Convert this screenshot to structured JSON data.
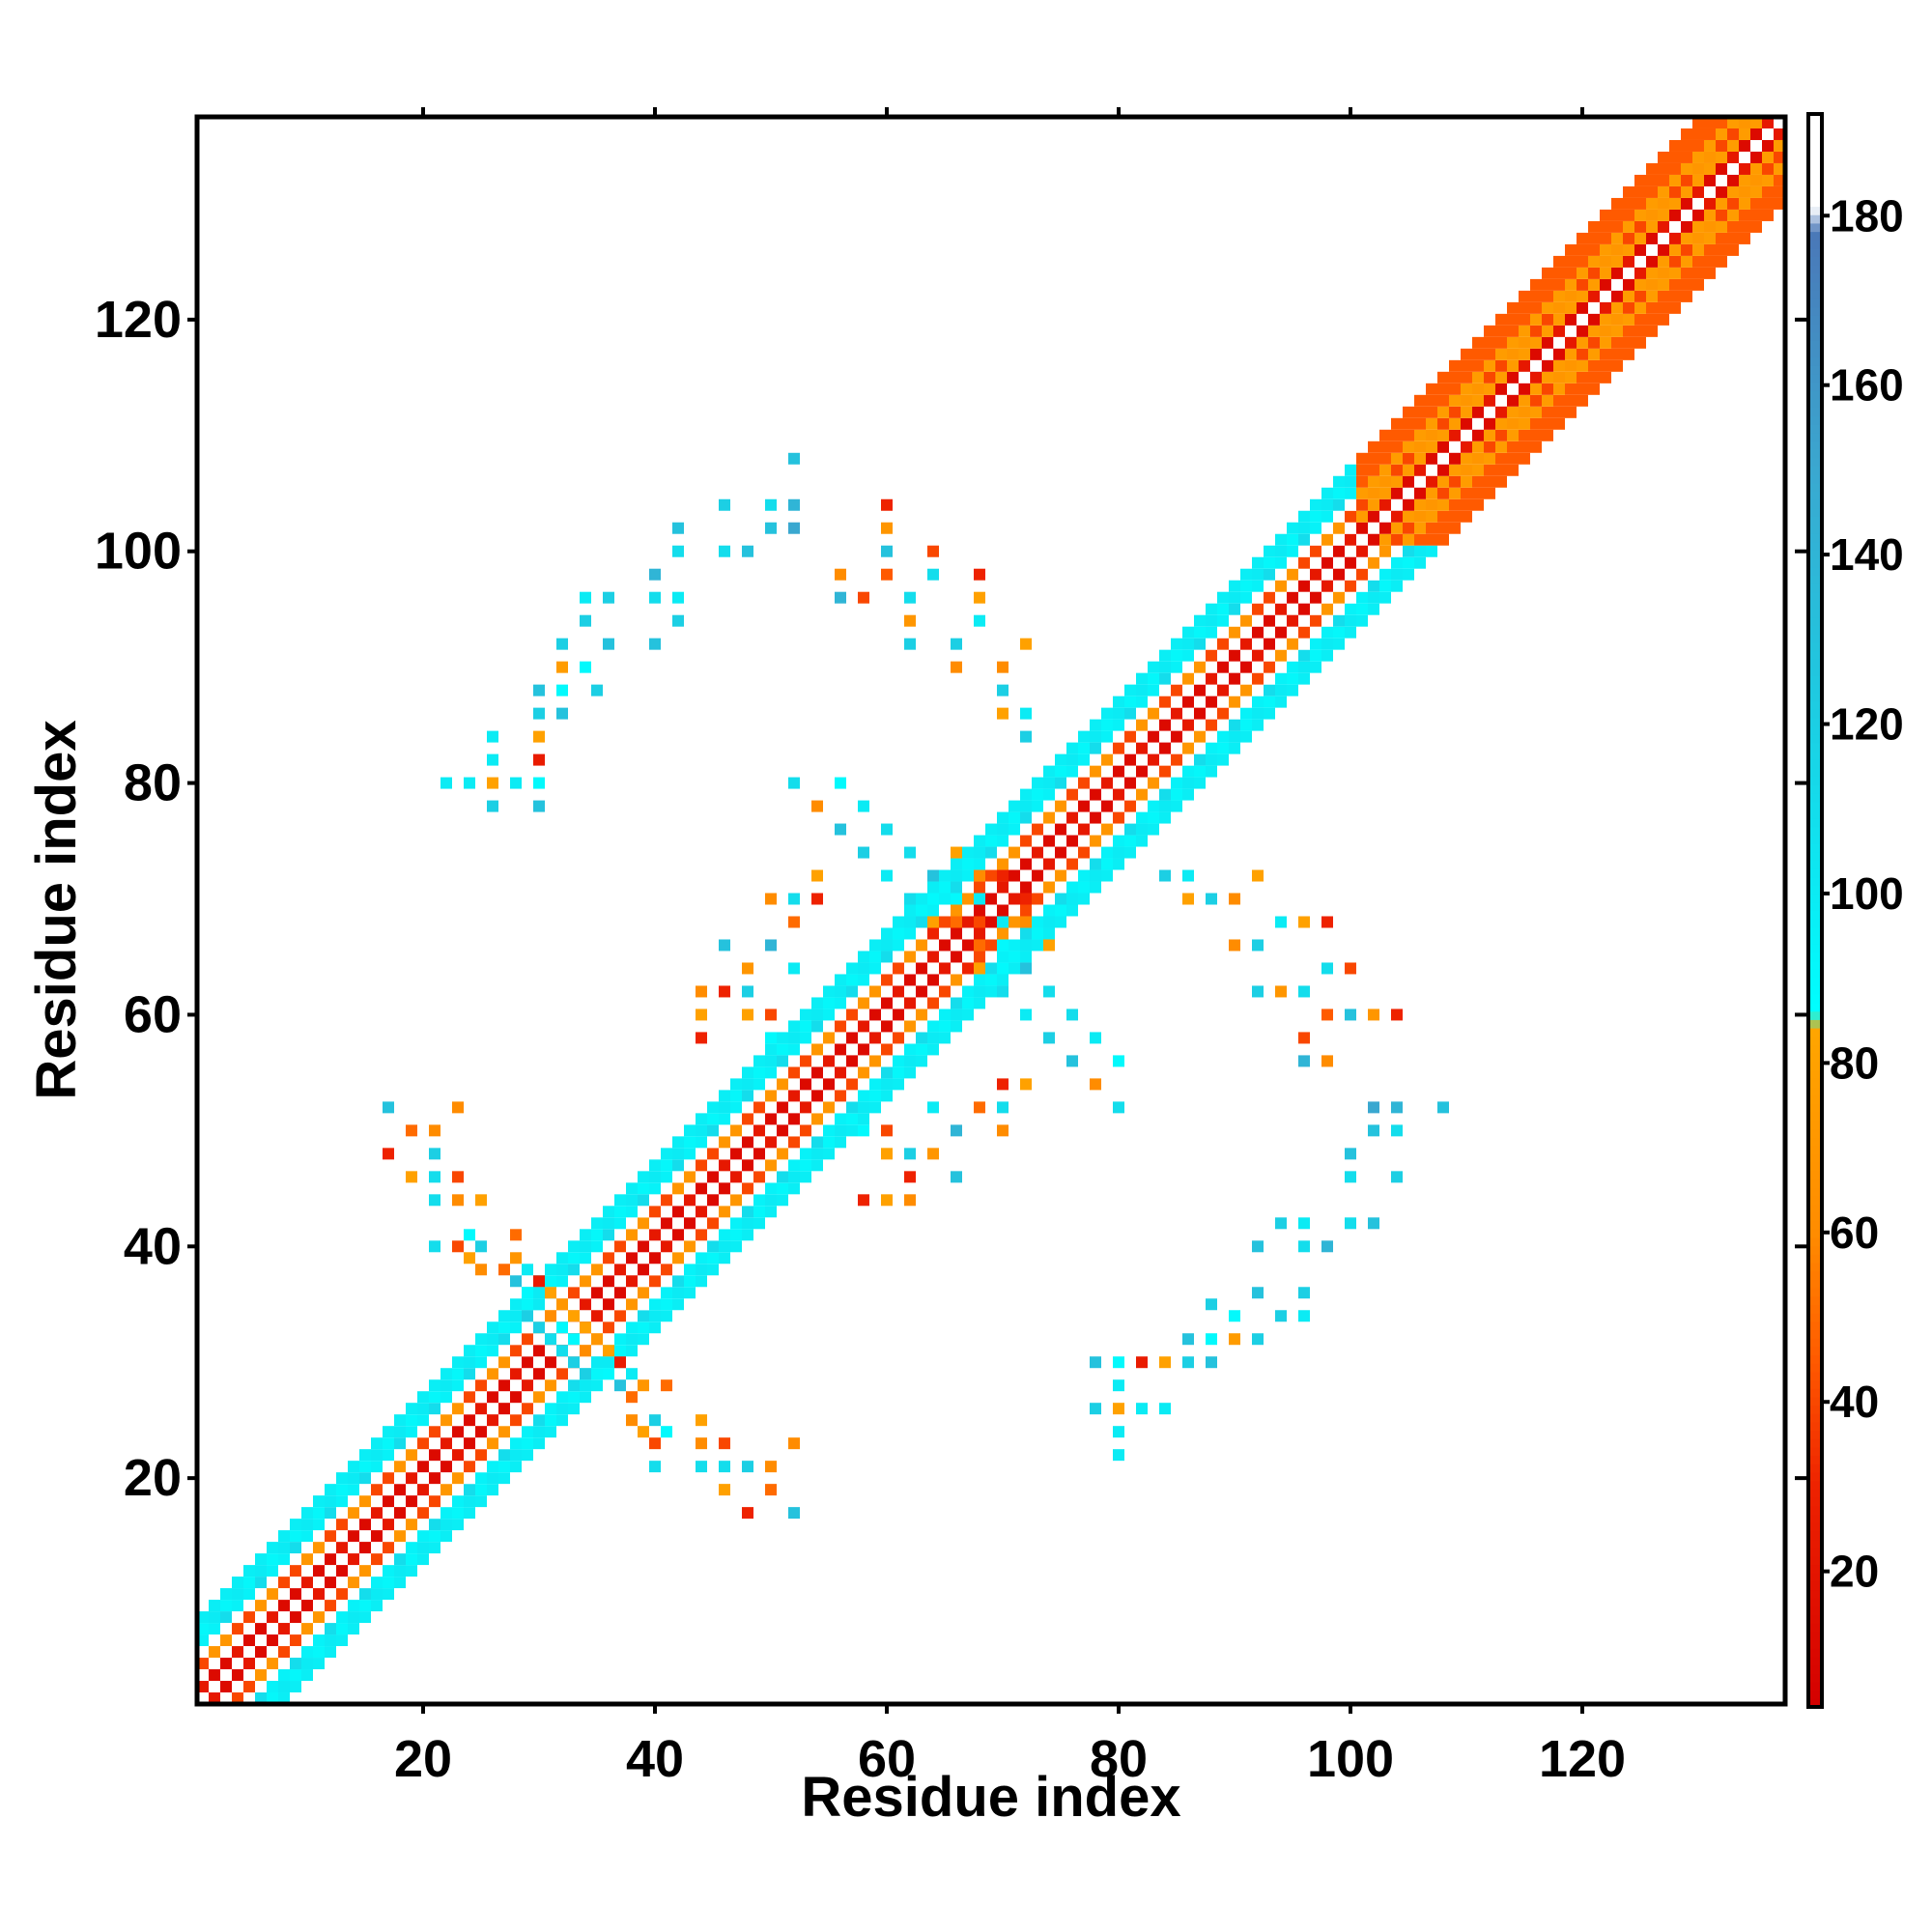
{
  "chart_data": {
    "type": "heatmap",
    "title": "",
    "xlabel": "Residue index",
    "ylabel": "Residue index",
    "xlim": [
      1,
      137
    ],
    "ylim": [
      1,
      137
    ],
    "xticks": [
      20,
      40,
      60,
      80,
      100,
      120
    ],
    "yticks": [
      20,
      40,
      60,
      80,
      100,
      120
    ],
    "grid": false,
    "colorbar": {
      "range": [
        4,
        192
      ],
      "ticks": [
        20,
        40,
        60,
        80,
        100,
        120,
        140,
        160,
        180
      ],
      "stops": [
        {
          "value": 4,
          "color": "#d40000"
        },
        {
          "value": 30,
          "color": "#ee2200"
        },
        {
          "value": 45,
          "color": "#ff5a00"
        },
        {
          "value": 60,
          "color": "#ff8c00"
        },
        {
          "value": 84,
          "color": "#ffa500"
        },
        {
          "value": 86,
          "color": "#00ffff"
        },
        {
          "value": 125,
          "color": "#20c8e0"
        },
        {
          "value": 150,
          "color": "#3aa8d0"
        },
        {
          "value": 178,
          "color": "#4a78b8"
        },
        {
          "value": 181,
          "color": "#ffffff"
        },
        {
          "value": 192,
          "color": "#ffffff"
        }
      ]
    },
    "band": {
      "halfwidth": 7,
      "start": 1,
      "end": 137
    },
    "off_diagonal_contacts": [
      [
        80,
        22,
        100
      ],
      [
        80,
        24,
        100
      ],
      [
        78,
        26,
        120
      ],
      [
        80,
        26,
        80
      ],
      [
        82,
        26,
        100
      ],
      [
        84,
        26,
        100
      ],
      [
        80,
        28,
        100
      ],
      [
        78,
        30,
        130
      ],
      [
        80,
        30,
        90
      ],
      [
        82,
        30,
        25
      ],
      [
        84,
        30,
        80
      ],
      [
        86,
        30,
        120
      ],
      [
        88,
        30,
        130
      ],
      [
        86,
        32,
        130
      ],
      [
        88,
        32,
        90
      ],
      [
        90,
        32,
        75
      ],
      [
        92,
        32,
        120
      ],
      [
        94,
        34,
        120
      ],
      [
        96,
        34,
        100
      ],
      [
        88,
        35,
        120
      ],
      [
        90,
        34,
        90
      ],
      [
        92,
        36,
        130
      ],
      [
        96,
        36,
        120
      ],
      [
        92,
        40,
        130
      ],
      [
        96,
        40,
        110
      ],
      [
        98,
        40,
        140
      ],
      [
        94,
        42,
        120
      ],
      [
        96,
        42,
        100
      ],
      [
        100,
        42,
        110
      ],
      [
        102,
        42,
        130
      ],
      [
        100,
        46,
        110
      ],
      [
        104,
        46,
        120
      ],
      [
        100,
        48,
        130
      ],
      [
        102,
        50,
        130
      ],
      [
        104,
        50,
        110
      ],
      [
        102,
        52,
        150
      ],
      [
        104,
        52,
        140
      ],
      [
        108,
        52,
        130
      ],
      [
        96,
        56,
        140
      ],
      [
        98,
        56,
        60
      ],
      [
        96,
        58,
        40
      ],
      [
        98,
        60,
        45
      ],
      [
        100,
        60,
        130
      ],
      [
        102,
        60,
        70
      ],
      [
        104,
        60,
        30
      ],
      [
        92,
        62,
        120
      ],
      [
        94,
        62,
        70
      ],
      [
        96,
        62,
        110
      ],
      [
        98,
        64,
        110
      ],
      [
        100,
        64,
        40
      ],
      [
        90,
        66,
        60
      ],
      [
        92,
        66,
        120
      ],
      [
        94,
        68,
        100
      ],
      [
        96,
        68,
        80
      ],
      [
        98,
        68,
        30
      ],
      [
        86,
        70,
        80
      ],
      [
        88,
        70,
        120
      ],
      [
        90,
        70,
        60
      ],
      [
        84,
        72,
        120
      ],
      [
        86,
        72,
        100
      ],
      [
        92,
        72,
        80
      ],
      [
        39,
        24,
        80
      ],
      [
        41,
        24,
        90
      ],
      [
        37,
        28,
        130
      ],
      [
        39,
        28,
        70
      ],
      [
        41,
        28,
        50
      ],
      [
        33,
        30,
        120
      ],
      [
        35,
        30,
        100
      ],
      [
        37,
        30,
        25
      ],
      [
        31,
        32,
        110
      ],
      [
        33,
        32,
        90
      ],
      [
        35,
        32,
        70
      ],
      [
        29,
        34,
        120
      ],
      [
        31,
        34,
        60
      ],
      [
        33,
        34,
        80
      ],
      [
        29,
        36,
        90
      ],
      [
        31,
        36,
        80
      ],
      [
        25,
        38,
        60
      ],
      [
        27,
        38,
        50
      ],
      [
        29,
        38,
        100
      ],
      [
        21,
        40,
        110
      ],
      [
        23,
        40,
        40
      ],
      [
        25,
        40,
        120
      ],
      [
        21,
        44,
        110
      ],
      [
        23,
        44,
        60
      ],
      [
        25,
        44,
        80
      ],
      [
        19,
        46,
        80
      ],
      [
        21,
        46,
        110
      ],
      [
        23,
        46,
        40
      ],
      [
        17,
        48,
        30
      ],
      [
        21,
        48,
        120
      ],
      [
        19,
        50,
        50
      ],
      [
        21,
        50,
        60
      ],
      [
        17,
        52,
        130
      ],
      [
        23,
        52,
        60
      ],
      [
        58,
        44,
        30
      ],
      [
        60,
        44,
        80
      ],
      [
        62,
        44,
        60
      ],
      [
        62,
        46,
        30
      ],
      [
        66,
        46,
        130
      ],
      [
        60,
        48,
        80
      ],
      [
        62,
        48,
        120
      ],
      [
        64,
        48,
        70
      ],
      [
        58,
        50,
        90
      ],
      [
        60,
        50,
        40
      ],
      [
        66,
        50,
        140
      ],
      [
        70,
        50,
        60
      ],
      [
        64,
        52,
        100
      ],
      [
        68,
        52,
        50
      ],
      [
        70,
        52,
        110
      ],
      [
        70,
        54,
        30
      ],
      [
        72,
        54,
        80
      ],
      [
        67,
        64,
        30
      ],
      [
        70,
        64,
        90
      ],
      [
        68,
        66,
        50
      ],
      [
        64,
        68,
        80
      ],
      [
        68,
        68,
        40
      ],
      [
        70,
        68,
        100
      ],
      [
        62,
        70,
        110
      ],
      [
        66,
        70,
        90
      ],
      [
        72,
        70,
        30
      ],
      [
        60,
        72,
        100
      ],
      [
        64,
        72,
        130
      ],
      [
        68,
        72,
        60
      ],
      [
        58,
        74,
        120
      ],
      [
        62,
        74,
        110
      ],
      [
        66,
        74,
        80
      ],
      [
        56,
        76,
        130
      ],
      [
        60,
        76,
        110
      ],
      [
        54,
        78,
        60
      ],
      [
        58,
        78,
        100
      ],
      [
        52,
        80,
        110
      ],
      [
        56,
        80,
        90
      ]
    ]
  }
}
